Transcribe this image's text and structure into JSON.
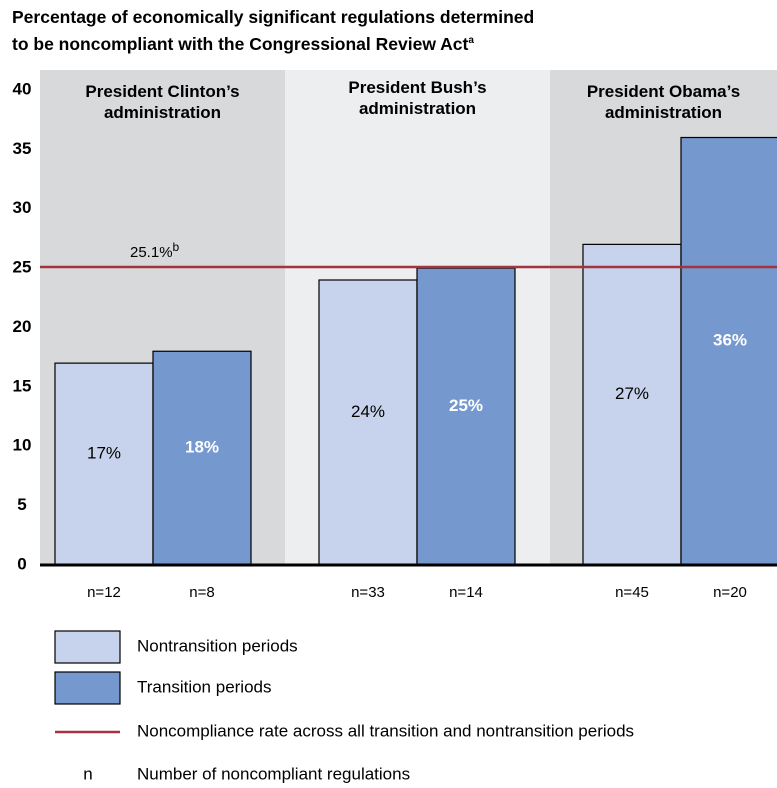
{
  "chart_data": {
    "type": "bar",
    "title": [
      "Percentage of economically significant regulations determined",
      "to be noncompliant with the Congressional Review Act"
    ],
    "title_note": "a",
    "categories": [
      "President Clinton’s administration",
      "President Bush’s administration",
      "President Obama’s administration"
    ],
    "band_colors": [
      "#d8d9db",
      "#eceeef",
      "#d8d9db"
    ],
    "series": [
      {
        "name": "Nontransition periods",
        "color": "#c7d3ec",
        "label_color": "#000000",
        "values": [
          17,
          24,
          27
        ],
        "value_labels": [
          "17%",
          "24%",
          "27%"
        ],
        "n_labels": [
          "n=12",
          "n=33",
          "n=45"
        ]
      },
      {
        "name": "Transition periods",
        "color": "#7598cf",
        "label_color": "#ffffff",
        "values": [
          18,
          25,
          36
        ],
        "value_labels": [
          "18%",
          "25%",
          "36%"
        ],
        "n_labels": [
          "n=8",
          "n=14",
          "n=20"
        ]
      }
    ],
    "reference_line": {
      "name": "Noncompliance rate across all transition and nontransition periods",
      "value": 25.1,
      "value_label": "25.1%",
      "note": "b",
      "color": "#a3343f"
    },
    "n_key": "n",
    "n_description": "Number of noncompliant regulations",
    "ylim": [
      0,
      40
    ],
    "yticks": [
      0,
      5,
      10,
      15,
      20,
      25,
      30,
      35,
      40
    ],
    "grid": false
  }
}
